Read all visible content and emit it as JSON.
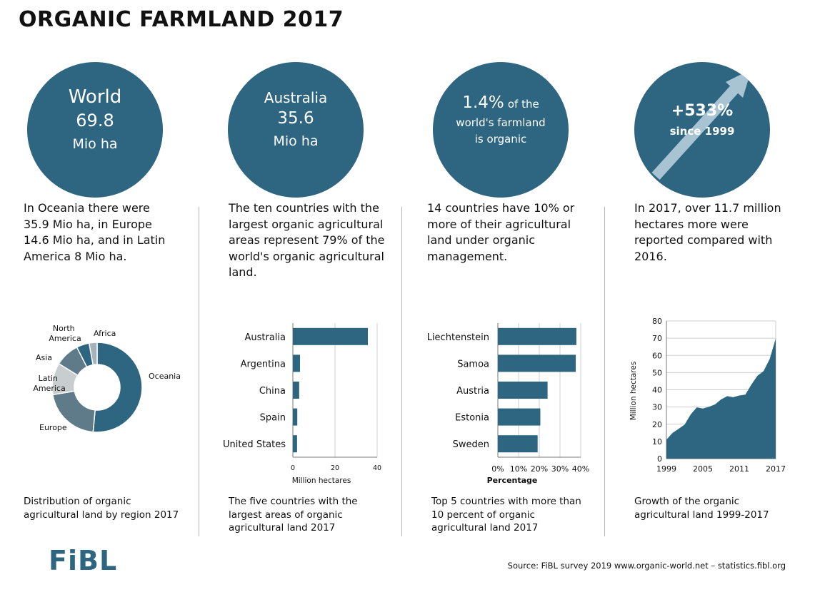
{
  "title": "ORGANIC FARMLAND 2017",
  "circles": [
    {
      "line1": "World",
      "line2": "69.8",
      "line3": "Mio ha"
    },
    {
      "line1": "Australia",
      "line2": "35.6",
      "line3": "Mio ha"
    },
    {
      "line1_big": "1.4%",
      "line1_rest": "of the",
      "line2": "world's farmland",
      "line3": "is organic"
    },
    {
      "line1": "+533%",
      "line2": "since 1999"
    }
  ],
  "descriptions": [
    "In Oceania there were 35.9 Mio ha, in Europe 14.6 Mio ha, and in Latin America 8 Mio ha.",
    "The ten countries with the largest organic agricultural areas represent 79% of the world's organic agricultural land.",
    "14 countries have 10% or more of their agricultural land under organic management.",
    "In 2017, over 11.7 million hectares more were reported compared with 2016."
  ],
  "captions": [
    "Distribution of organic agricultural land by region 2017",
    "The five countries with the largest areas of organic agricultural land 2017",
    "Top 5 countries with more than 10 percent of organic agricultural land 2017",
    "Growth of the organic agricultural land 1999-2017"
  ],
  "source": "Source: FiBL survey 2019  www.organic-world.net – statistics.fibl.org",
  "logo": "FiBL",
  "colors": {
    "accent": "#2e6681",
    "slate": "#5f7a88",
    "light_gray": "#c8cdd0",
    "mid_gray": "#a7b3ba"
  },
  "chart_data": [
    {
      "type": "pie",
      "variant": "donut",
      "labels": [
        "Oceania",
        "Europe",
        "Latin America",
        "Asia",
        "North America",
        "Africa"
      ],
      "values": [
        35.9,
        14.6,
        8.0,
        6.1,
        3.2,
        2.0
      ],
      "colors": [
        "#2e6681",
        "#5f7a88",
        "#c8cdd0",
        "#5f7a88",
        "#2e6681",
        "#a7b3ba"
      ]
    },
    {
      "type": "bar",
      "orientation": "horizontal",
      "categories": [
        "Australia",
        "Argentina",
        "China",
        "Spain",
        "United States"
      ],
      "values": [
        35.6,
        3.4,
        3.0,
        2.1,
        2.0
      ],
      "xlabel": "Million hectares",
      "xlim": [
        0,
        40
      ],
      "xticks": [
        "0",
        "20",
        "40"
      ]
    },
    {
      "type": "bar",
      "orientation": "horizontal",
      "categories": [
        "Liechtenstein",
        "Samoa",
        "Austria",
        "Estonia",
        "Sweden"
      ],
      "values": [
        37.9,
        37.6,
        24.0,
        20.5,
        19.2
      ],
      "xlabel": "Percentage",
      "xlim": [
        0,
        40
      ],
      "xticks": [
        "0%",
        "10%",
        "20%",
        "30%",
        "40%"
      ]
    },
    {
      "type": "area",
      "x": [
        1999,
        2000,
        2001,
        2002,
        2003,
        2004,
        2005,
        2006,
        2007,
        2008,
        2009,
        2010,
        2011,
        2012,
        2013,
        2014,
        2015,
        2016,
        2017
      ],
      "values": [
        11,
        14.9,
        17.3,
        19.8,
        25.7,
        29.8,
        29.1,
        30.1,
        31.5,
        34.4,
        36.3,
        35.7,
        36.7,
        37.2,
        43.1,
        48.2,
        50.9,
        57.8,
        69.8
      ],
      "ylabel": "Million hectares",
      "ylim": [
        0,
        80
      ],
      "yticks": [
        "0",
        "10",
        "20",
        "30",
        "40",
        "50",
        "60",
        "70",
        "80"
      ],
      "xticks": [
        "1999",
        "2005",
        "2011",
        "2017"
      ]
    }
  ]
}
